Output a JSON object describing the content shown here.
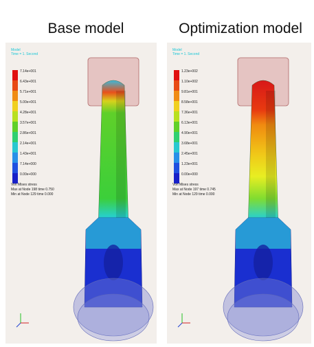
{
  "panels": [
    {
      "title": "Base model",
      "header": [
        "Model",
        "Time = 1. Second"
      ],
      "legend": [
        "7.14e+001",
        "6.43e+001",
        "5.71e+001",
        "5.00e+001",
        "4.28e+001",
        "3.57e+001",
        "2.86e+001",
        "2.14e+001",
        "1.43e+001",
        "7.14e+000",
        "0.00e+000"
      ],
      "footer": [
        "Von Mises stress",
        "Max at Node 198 time 0.750",
        "Min at Node 129 time 0.000"
      ]
    },
    {
      "title": "Optimization model",
      "header": [
        "Model",
        "Time = 1. Second"
      ],
      "legend": [
        "1.23e+002",
        "1.10e+002",
        "9.81e+001",
        "8.58e+001",
        "7.36e+001",
        "6.13e+001",
        "4.90e+001",
        "3.68e+001",
        "2.45e+001",
        "1.23e+001",
        "0.00e+000"
      ],
      "footer": [
        "Von Mises stress",
        "Max at Node 197 time 0.745",
        "Min at Node 129 time 0.000"
      ]
    }
  ]
}
